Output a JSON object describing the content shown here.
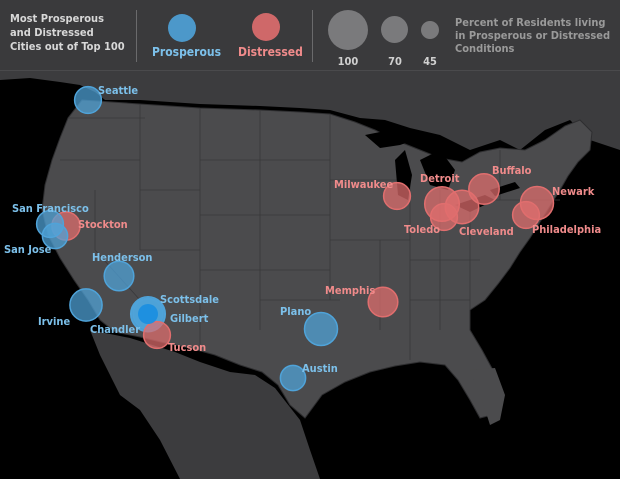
{
  "legend": {
    "title": "Most Prosperous\nand Distressed\nCities out of Top 100",
    "prosperous_label": "Prosperous",
    "distressed_label": "Distressed",
    "size_labels": [
      "100",
      "70",
      "45"
    ],
    "size_description": "Percent of Residents living in Prosperous or Distressed Conditions"
  },
  "colors": {
    "prosperous": "#4fa3d9",
    "distressed": "#e06e6e",
    "prosperous_text": "#7cc0ea",
    "distressed_text": "#f08b8b",
    "land": "#4b4b4d",
    "ocean": "#000000"
  },
  "cities": [
    {
      "name": "Seattle",
      "type": "prosperous",
      "size": 45
    },
    {
      "name": "San Francisco",
      "type": "prosperous",
      "size": 45
    },
    {
      "name": "San Jose",
      "type": "prosperous",
      "size": 40
    },
    {
      "name": "Stockton",
      "type": "distressed",
      "size": 50
    },
    {
      "name": "Henderson",
      "type": "prosperous",
      "size": 55
    },
    {
      "name": "Irvine",
      "type": "prosperous",
      "size": 65
    },
    {
      "name": "Chandler",
      "type": "prosperous",
      "size": 70
    },
    {
      "name": "Scottsdale",
      "type": "prosperous",
      "size": 75
    },
    {
      "name": "Gilbert",
      "type": "prosperous",
      "size": 55
    },
    {
      "name": "Tucson",
      "type": "distressed",
      "size": 45
    },
    {
      "name": "Plano",
      "type": "prosperous",
      "size": 68
    },
    {
      "name": "Austin",
      "type": "prosperous",
      "size": 40
    },
    {
      "name": "Memphis",
      "type": "distressed",
      "size": 55
    },
    {
      "name": "Milwaukee",
      "type": "distressed",
      "size": 45
    },
    {
      "name": "Detroit",
      "type": "distressed",
      "size": 75
    },
    {
      "name": "Toledo",
      "type": "distressed",
      "size": 45
    },
    {
      "name": "Cleveland",
      "type": "distressed",
      "size": 70
    },
    {
      "name": "Buffalo",
      "type": "distressed",
      "size": 58
    },
    {
      "name": "Newark",
      "type": "distressed",
      "size": 68
    },
    {
      "name": "Philadelphia",
      "type": "distressed",
      "size": 45
    }
  ]
}
